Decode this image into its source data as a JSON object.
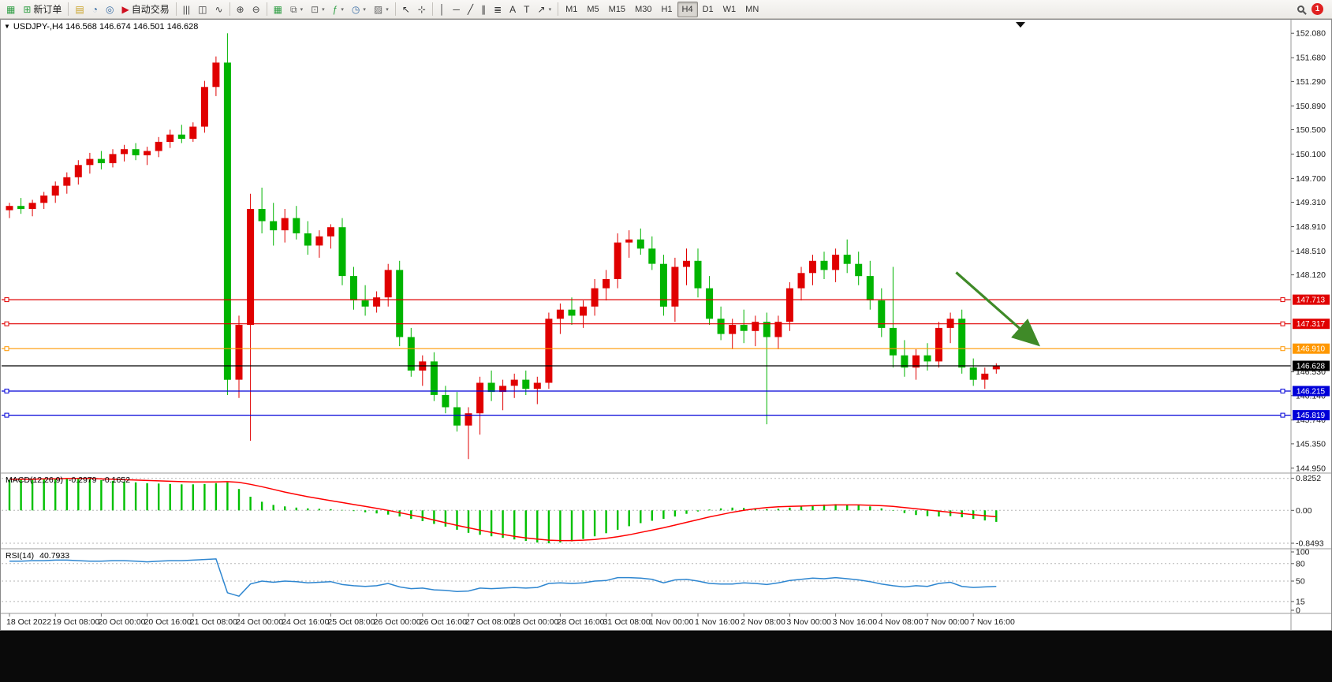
{
  "toolbar": {
    "items": [
      {
        "name": "chart-window-icon",
        "glyph": "▦",
        "color": "#2f9e44"
      },
      {
        "name": "new-order-button",
        "label": "新订单",
        "glyph": "⊞",
        "color": "#2f9e44"
      },
      {
        "sep": true
      },
      {
        "name": "profiles-icon",
        "glyph": "▤",
        "color": "#c9a227"
      },
      {
        "name": "market-watch-icon",
        "glyph": "◔",
        "color": "#3a6ea5"
      },
      {
        "name": "data-window-icon",
        "glyph": "◎",
        "color": "#3a6ea5"
      },
      {
        "name": "autotrading-button",
        "label": "自动交易",
        "glyph": "▶",
        "color": "#cf1020"
      },
      {
        "sep": true
      },
      {
        "name": "bar-chart-icon",
        "glyph": "|||",
        "color": "#444"
      },
      {
        "name": "candlestick-chart-icon",
        "glyph": "◫",
        "color": "#444"
      },
      {
        "name": "line-chart-icon",
        "glyph": "∿",
        "color": "#444"
      },
      {
        "sep": true
      },
      {
        "name": "zoom-in-icon",
        "glyph": "⊕",
        "color": "#444"
      },
      {
        "name": "zoom-out-icon",
        "glyph": "⊖",
        "color": "#444"
      },
      {
        "sep": true
      },
      {
        "name": "tile-windows-icon",
        "glyph": "▦",
        "color": "#2f9e44"
      },
      {
        "name": "window-list-icon",
        "glyph": "⧉",
        "color": "#666",
        "caret": true
      },
      {
        "name": "chart-shift-icon",
        "glyph": "⊡",
        "color": "#666",
        "caret": true
      },
      {
        "name": "indicators-icon",
        "glyph": "ƒ",
        "color": "#2f9e44",
        "caret": true
      },
      {
        "name": "periods-icon",
        "glyph": "◷",
        "color": "#3a6ea5",
        "caret": true
      },
      {
        "name": "templates-icon",
        "glyph": "▨",
        "color": "#666",
        "caret": true
      },
      {
        "sep": true
      },
      {
        "name": "cursor-icon",
        "glyph": "↖",
        "color": "#333"
      },
      {
        "name": "crosshair-icon",
        "glyph": "⊹",
        "color": "#333"
      },
      {
        "sep": true
      },
      {
        "name": "vertical-line-icon",
        "glyph": "│",
        "color": "#333"
      },
      {
        "name": "horizontal-line-icon",
        "glyph": "─",
        "color": "#333"
      },
      {
        "name": "trendline-icon",
        "glyph": "╱",
        "color": "#333"
      },
      {
        "name": "channel-icon",
        "glyph": "∥",
        "color": "#333"
      },
      {
        "name": "fibonacci-icon",
        "glyph": "≣",
        "color": "#333"
      },
      {
        "name": "text-icon",
        "glyph": "A",
        "color": "#333"
      },
      {
        "name": "label-icon",
        "glyph": "T",
        "color": "#333"
      },
      {
        "name": "arrows-icon",
        "glyph": "↗",
        "color": "#333",
        "caret": true
      },
      {
        "sep": true
      },
      {
        "name": "tf-m1-button",
        "label": "M1",
        "tf": true
      },
      {
        "name": "tf-m5-button",
        "label": "M5",
        "tf": true
      },
      {
        "name": "tf-m15-button",
        "label": "M15",
        "tf": true
      },
      {
        "name": "tf-m30-button",
        "label": "M30",
        "tf": true
      },
      {
        "name": "tf-h1-button",
        "label": "H1",
        "tf": true
      },
      {
        "name": "tf-h4-button",
        "label": "H4",
        "tf": true,
        "active": true
      },
      {
        "name": "tf-d1-button",
        "label": "D1",
        "tf": true
      },
      {
        "name": "tf-w1-button",
        "label": "W1",
        "tf": true
      },
      {
        "name": "tf-mn-button",
        "label": "MN",
        "tf": true
      }
    ],
    "right": {
      "notification_count": "1"
    }
  },
  "colors": {
    "up": "#e00000",
    "down": "#00b400",
    "macd_hist": "#00c000",
    "macd_signal": "#ff0000",
    "rsi": "#2e86d0"
  },
  "chart_data": [
    {
      "type": "candlestick",
      "title": "USDJPY-,H4 146.568 146.674 146.501 146.628",
      "symbol": "USDJPY-",
      "timeframe": "H4",
      "current": {
        "open": "146.568",
        "high": "146.674",
        "low": "146.501",
        "close": "146.628"
      },
      "ylim": [
        144.87,
        152.29
      ],
      "y_ticks": [
        "152.080",
        "151.680",
        "151.290",
        "150.890",
        "150.500",
        "150.100",
        "149.700",
        "149.310",
        "148.910",
        "148.510",
        "148.120",
        "146.530",
        "146.140",
        "145.740",
        "145.350",
        "144.950"
      ],
      "hlines": [
        {
          "price": 147.713,
          "label": "147.713",
          "color": "#e00000",
          "handles": true
        },
        {
          "price": 147.317,
          "label": "147.317",
          "color": "#e00000",
          "handles": true
        },
        {
          "price": 146.91,
          "label": "146.910",
          "color": "#ff9800",
          "handles": true
        },
        {
          "price": 146.628,
          "label": "146.628",
          "color": "#000000",
          "handles": false
        },
        {
          "price": 146.215,
          "label": "146.215",
          "color": "#0000d8",
          "handles": true
        },
        {
          "price": 145.819,
          "label": "145.819",
          "color": "#0000d8",
          "handles": true
        }
      ],
      "annotation_arrow": {
        "from_bar": 82.5,
        "from_price": 148.16,
        "to_bar": 89.5,
        "to_price": 147.0,
        "color": "#3f8a28"
      },
      "x_label_step": 4,
      "x_labels": [
        "18 Oct 2022",
        "19 Oct 08:00",
        "20 Oct 00:00",
        "20 Oct 16:00",
        "21 Oct 08:00",
        "24 Oct 00:00",
        "24 Oct 16:00",
        "25 Oct 08:00",
        "26 Oct 00:00",
        "26 Oct 16:00",
        "27 Oct 08:00",
        "28 Oct 00:00",
        "28 Oct 16:00",
        "31 Oct 08:00",
        "1 Nov 00:00",
        "1 Nov 16:00",
        "2 Nov 08:00",
        "3 Nov 00:00",
        "3 Nov 16:00",
        "4 Nov 08:00",
        "7 Nov 00:00",
        "7 Nov 16:00"
      ],
      "ohlc": [
        [
          149.18,
          149.3,
          149.05,
          149.25
        ],
        [
          149.25,
          149.38,
          149.12,
          149.2
        ],
        [
          149.2,
          149.35,
          149.08,
          149.3
        ],
        [
          149.3,
          149.48,
          149.2,
          149.42
        ],
        [
          149.42,
          149.65,
          149.3,
          149.58
        ],
        [
          149.58,
          149.8,
          149.45,
          149.72
        ],
        [
          149.72,
          150.0,
          149.6,
          149.92
        ],
        [
          149.92,
          150.12,
          149.78,
          150.02
        ],
        [
          150.02,
          150.15,
          149.85,
          149.95
        ],
        [
          149.95,
          150.18,
          149.88,
          150.1
        ],
        [
          150.1,
          150.25,
          149.98,
          150.18
        ],
        [
          150.18,
          150.28,
          150.0,
          150.08
        ],
        [
          150.08,
          150.22,
          149.92,
          150.15
        ],
        [
          150.15,
          150.38,
          150.05,
          150.3
        ],
        [
          150.3,
          150.5,
          150.2,
          150.42
        ],
        [
          150.42,
          150.58,
          150.28,
          150.35
        ],
        [
          150.35,
          150.62,
          150.3,
          150.55
        ],
        [
          150.55,
          151.3,
          150.45,
          151.2
        ],
        [
          151.2,
          151.7,
          151.05,
          151.6
        ],
        [
          151.6,
          152.08,
          146.15,
          146.4
        ],
        [
          146.4,
          147.45,
          146.1,
          147.3
        ],
        [
          147.3,
          149.45,
          145.4,
          149.2
        ],
        [
          149.2,
          149.55,
          148.8,
          149.0
        ],
        [
          149.0,
          149.3,
          148.6,
          148.85
        ],
        [
          148.85,
          149.2,
          148.65,
          149.05
        ],
        [
          149.05,
          149.25,
          148.7,
          148.8
        ],
        [
          148.8,
          149.0,
          148.45,
          148.6
        ],
        [
          148.6,
          148.85,
          148.4,
          148.75
        ],
        [
          148.75,
          148.95,
          148.55,
          148.9
        ],
        [
          148.9,
          149.05,
          147.95,
          148.1
        ],
        [
          148.1,
          148.25,
          147.55,
          147.7
        ],
        [
          147.7,
          147.95,
          147.45,
          147.6
        ],
        [
          147.6,
          147.85,
          147.5,
          147.75
        ],
        [
          147.75,
          148.3,
          147.6,
          148.2
        ],
        [
          148.2,
          148.35,
          146.95,
          147.1
        ],
        [
          147.1,
          147.25,
          146.45,
          146.55
        ],
        [
          146.55,
          146.8,
          146.3,
          146.7
        ],
        [
          146.7,
          146.85,
          146.05,
          146.15
        ],
        [
          146.15,
          146.3,
          145.85,
          145.95
        ],
        [
          145.95,
          146.2,
          145.55,
          145.65
        ],
        [
          145.65,
          145.95,
          145.1,
          145.85
        ],
        [
          145.85,
          146.45,
          145.5,
          146.35
        ],
        [
          146.35,
          146.55,
          146.05,
          146.2
        ],
        [
          146.2,
          146.4,
          145.9,
          146.3
        ],
        [
          146.3,
          146.5,
          146.1,
          146.4
        ],
        [
          146.4,
          146.55,
          146.15,
          146.25
        ],
        [
          146.25,
          146.45,
          146.0,
          146.35
        ],
        [
          146.35,
          147.5,
          146.25,
          147.4
        ],
        [
          147.4,
          147.65,
          147.15,
          147.55
        ],
        [
          147.55,
          147.75,
          147.3,
          147.45
        ],
        [
          147.45,
          147.7,
          147.25,
          147.6
        ],
        [
          147.6,
          148.05,
          147.45,
          147.9
        ],
        [
          147.9,
          148.2,
          147.7,
          148.05
        ],
        [
          148.05,
          148.8,
          147.9,
          148.65
        ],
        [
          148.65,
          148.85,
          148.4,
          148.7
        ],
        [
          148.7,
          148.88,
          148.45,
          148.55
        ],
        [
          148.55,
          148.75,
          148.2,
          148.3
        ],
        [
          148.3,
          148.45,
          147.45,
          147.6
        ],
        [
          147.6,
          148.4,
          147.35,
          148.25
        ],
        [
          148.25,
          148.55,
          147.95,
          148.35
        ],
        [
          148.35,
          148.55,
          147.75,
          147.9
        ],
        [
          147.9,
          148.1,
          147.3,
          147.4
        ],
        [
          147.4,
          147.6,
          147.05,
          147.15
        ],
        [
          147.15,
          147.4,
          146.9,
          147.3
        ],
        [
          147.3,
          147.55,
          147.0,
          147.2
        ],
        [
          147.2,
          147.45,
          146.95,
          147.35
        ],
        [
          147.35,
          147.5,
          145.67,
          147.1
        ],
        [
          147.1,
          147.45,
          146.9,
          147.35
        ],
        [
          147.35,
          148.0,
          147.2,
          147.9
        ],
        [
          147.9,
          148.25,
          147.7,
          148.15
        ],
        [
          148.15,
          148.45,
          147.95,
          148.35
        ],
        [
          148.35,
          148.5,
          148.05,
          148.2
        ],
        [
          148.2,
          148.55,
          148.0,
          148.45
        ],
        [
          148.45,
          148.7,
          148.15,
          148.3
        ],
        [
          148.3,
          148.5,
          147.95,
          148.1
        ],
        [
          148.1,
          148.35,
          147.55,
          147.7
        ],
        [
          147.7,
          147.9,
          147.1,
          147.25
        ],
        [
          147.25,
          148.25,
          146.6,
          146.8
        ],
        [
          146.8,
          147.05,
          146.45,
          146.6
        ],
        [
          146.6,
          146.9,
          146.4,
          146.8
        ],
        [
          146.8,
          147.0,
          146.55,
          146.7
        ],
        [
          146.7,
          147.35,
          146.6,
          147.25
        ],
        [
          147.25,
          147.5,
          147.0,
          147.4
        ],
        [
          147.4,
          147.55,
          146.5,
          146.6
        ],
        [
          146.6,
          146.75,
          146.3,
          146.4
        ],
        [
          146.4,
          146.6,
          146.25,
          146.5
        ],
        [
          146.57,
          146.67,
          146.5,
          146.63
        ]
      ]
    },
    {
      "type": "macd",
      "label": "MACD(12,26,9)",
      "value_main": "-0.2979",
      "value_signal": "-0.1652",
      "ylim": [
        -0.95,
        0.92
      ],
      "y_ticks": [
        "0.8252",
        "0.00",
        "-0.8493"
      ],
      "histogram": [
        0.78,
        0.79,
        0.8,
        0.81,
        0.82,
        0.82,
        0.81,
        0.8,
        0.78,
        0.76,
        0.74,
        0.72,
        0.7,
        0.69,
        0.68,
        0.67,
        0.67,
        0.68,
        0.7,
        0.72,
        0.55,
        0.35,
        0.22,
        0.14,
        0.1,
        0.07,
        0.05,
        0.04,
        0.03,
        0.01,
        -0.02,
        -0.05,
        -0.08,
        -0.11,
        -0.16,
        -0.22,
        -0.28,
        -0.35,
        -0.42,
        -0.5,
        -0.58,
        -0.63,
        -0.67,
        -0.71,
        -0.75,
        -0.79,
        -0.83,
        -0.85,
        -0.83,
        -0.8,
        -0.74,
        -0.67,
        -0.59,
        -0.5,
        -0.41,
        -0.33,
        -0.27,
        -0.22,
        -0.16,
        -0.09,
        -0.03,
        0.02,
        0.05,
        0.07,
        0.06,
        0.05,
        0.03,
        0.04,
        0.07,
        0.1,
        0.13,
        0.15,
        0.16,
        0.15,
        0.13,
        0.1,
        0.05,
        -0.01,
        -0.07,
        -0.12,
        -0.15,
        -0.16,
        -0.15,
        -0.18,
        -0.22,
        -0.26,
        -0.2979
      ],
      "signal": [
        0.8,
        0.8,
        0.8,
        0.81,
        0.81,
        0.82,
        0.82,
        0.82,
        0.81,
        0.8,
        0.79,
        0.78,
        0.77,
        0.76,
        0.75,
        0.74,
        0.73,
        0.73,
        0.73,
        0.74,
        0.72,
        0.67,
        0.61,
        0.54,
        0.47,
        0.41,
        0.35,
        0.3,
        0.25,
        0.2,
        0.15,
        0.1,
        0.05,
        0.0,
        -0.06,
        -0.12,
        -0.18,
        -0.25,
        -0.32,
        -0.39,
        -0.45,
        -0.51,
        -0.57,
        -0.62,
        -0.67,
        -0.71,
        -0.74,
        -0.77,
        -0.78,
        -0.78,
        -0.77,
        -0.75,
        -0.72,
        -0.68,
        -0.63,
        -0.57,
        -0.51,
        -0.45,
        -0.38,
        -0.31,
        -0.24,
        -0.17,
        -0.11,
        -0.05,
        0.0,
        0.04,
        0.07,
        0.09,
        0.1,
        0.11,
        0.12,
        0.13,
        0.14,
        0.14,
        0.14,
        0.13,
        0.12,
        0.1,
        0.07,
        0.04,
        0.01,
        -0.02,
        -0.05,
        -0.08,
        -0.11,
        -0.14,
        -0.1652
      ]
    },
    {
      "type": "rsi",
      "label": "RSI(14)",
      "value": "40.7933",
      "ylim": [
        0,
        100
      ],
      "y_ticks": [
        "100",
        "80",
        "50",
        "15",
        "0"
      ],
      "levels": [
        80,
        50,
        15
      ],
      "values": [
        84,
        84,
        85,
        85,
        86,
        86,
        85,
        84,
        84,
        85,
        85,
        84,
        83,
        84,
        85,
        85,
        86,
        87,
        88,
        30,
        24,
        45,
        50,
        48,
        50,
        49,
        47,
        48,
        49,
        44,
        42,
        41,
        42,
        46,
        40,
        37,
        38,
        35,
        34,
        32,
        33,
        38,
        37,
        38,
        39,
        38,
        39,
        46,
        47,
        46,
        47,
        50,
        51,
        56,
        56,
        55,
        53,
        47,
        52,
        53,
        50,
        46,
        45,
        45,
        47,
        46,
        44,
        47,
        51,
        53,
        55,
        54,
        56,
        54,
        52,
        49,
        45,
        42,
        40,
        42,
        41,
        46,
        48,
        41,
        39,
        40,
        40.79
      ]
    }
  ]
}
